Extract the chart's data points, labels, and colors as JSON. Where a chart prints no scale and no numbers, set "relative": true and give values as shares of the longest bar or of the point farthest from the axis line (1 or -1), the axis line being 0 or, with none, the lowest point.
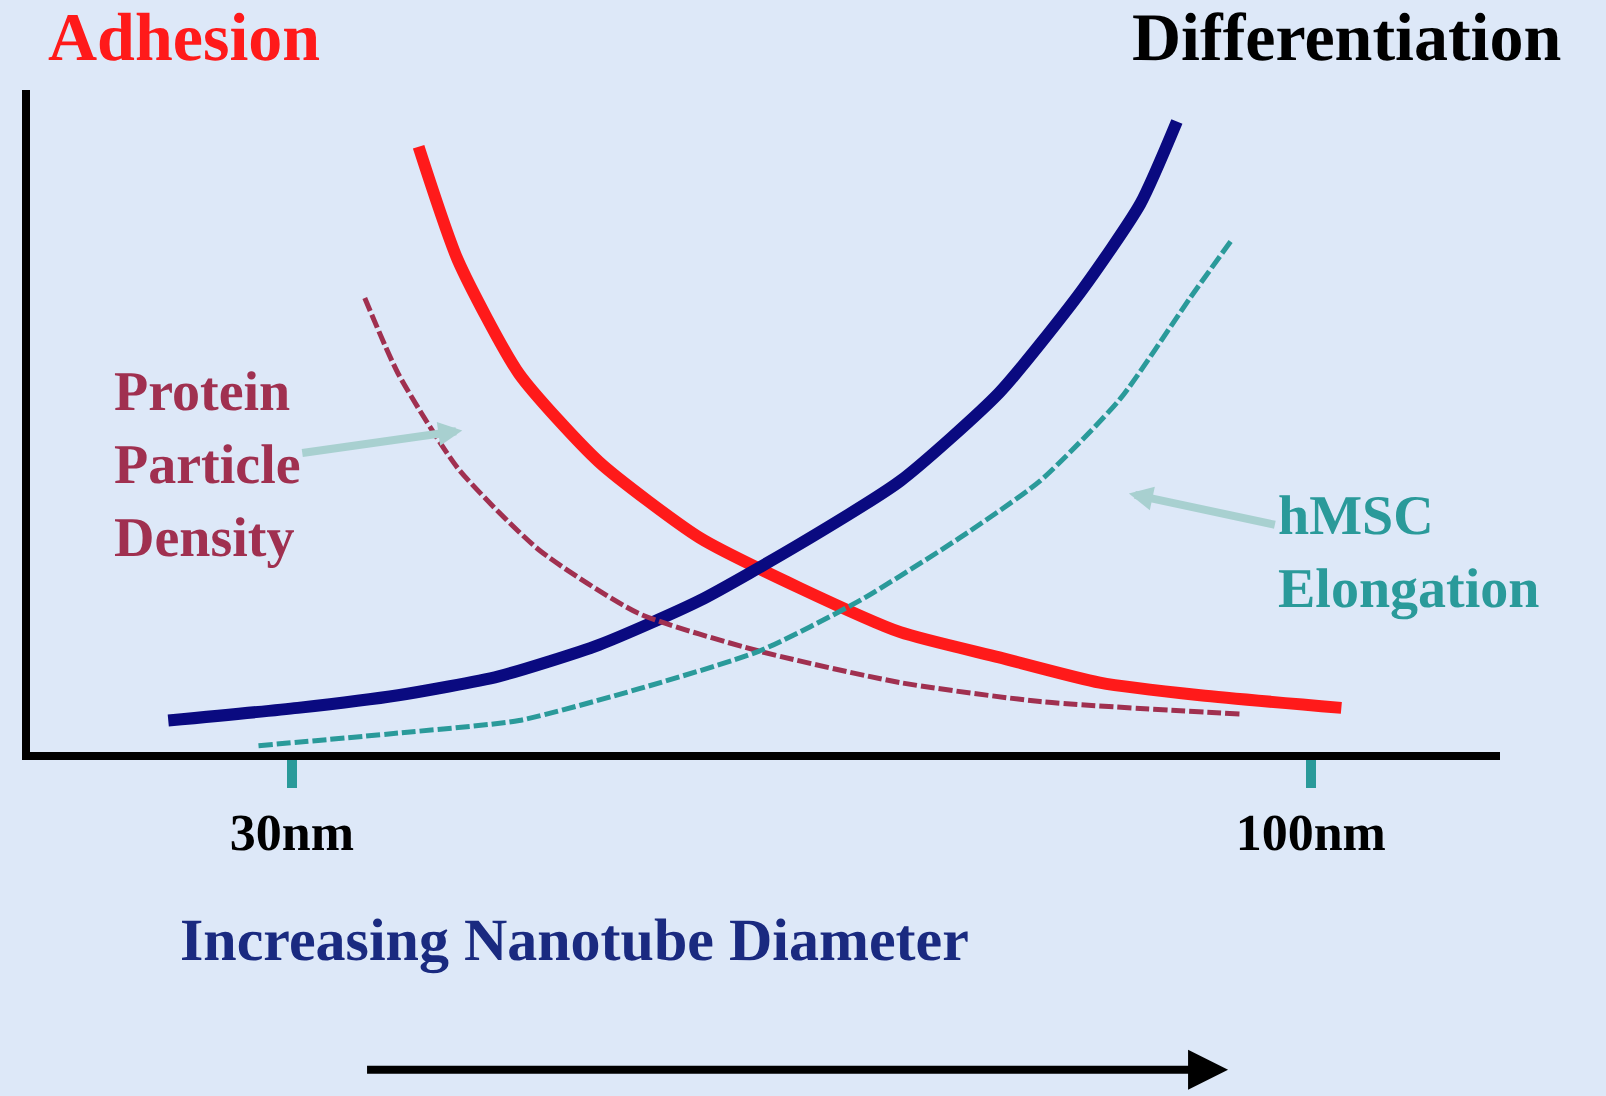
{
  "chart_data": {
    "type": "line",
    "relative": true,
    "xlabel": "Increasing Nanotube Diameter",
    "xlim": [
      12,
      113
    ],
    "xticks": [
      {
        "value": 30,
        "label": "30nm"
      },
      {
        "value": 100,
        "label": "100nm"
      }
    ],
    "legend": false,
    "grid": false,
    "marker": "none",
    "series": [
      {
        "name": "Adhesion",
        "color": "#ff1a1a",
        "line_style": "solid",
        "x": [
          38.7,
          41.4,
          45.6,
          51.1,
          58.0,
          64.9,
          71.8,
          78.6,
          85.5,
          92.4,
          102.1
        ],
        "values": [
          0.96,
          0.78,
          0.6,
          0.46,
          0.34,
          0.26,
          0.19,
          0.15,
          0.11,
          0.09,
          0.07
        ]
      },
      {
        "name": "Differentiation",
        "color": "#0a0a80",
        "line_style": "solid",
        "x": [
          21.5,
          30.4,
          37.3,
          44.2,
          51.1,
          58.0,
          64.9,
          71.8,
          78.6,
          84.2,
          88.3,
          90.8
        ],
        "values": [
          0.05,
          0.07,
          0.09,
          0.12,
          0.17,
          0.24,
          0.33,
          0.43,
          0.57,
          0.73,
          0.87,
          1.0
        ]
      },
      {
        "name": "Protein Particle Density",
        "color": "#a03050",
        "line_style": "dashed",
        "x": [
          35.0,
          37.3,
          41.4,
          47.0,
          53.8,
          62.1,
          71.8,
          81.4,
          95.2
        ],
        "values": [
          0.72,
          0.6,
          0.45,
          0.32,
          0.22,
          0.16,
          0.11,
          0.08,
          0.06
        ]
      },
      {
        "name": "hMSC Elongation",
        "color": "#2a9a9a",
        "line_style": "dashed",
        "x": [
          27.7,
          37.3,
          45.6,
          53.8,
          62.1,
          69.0,
          75.9,
          81.4,
          86.9,
          91.7,
          94.5
        ],
        "values": [
          0.01,
          0.03,
          0.05,
          0.1,
          0.16,
          0.24,
          0.34,
          0.43,
          0.56,
          0.72,
          0.81
        ]
      }
    ]
  }
}
